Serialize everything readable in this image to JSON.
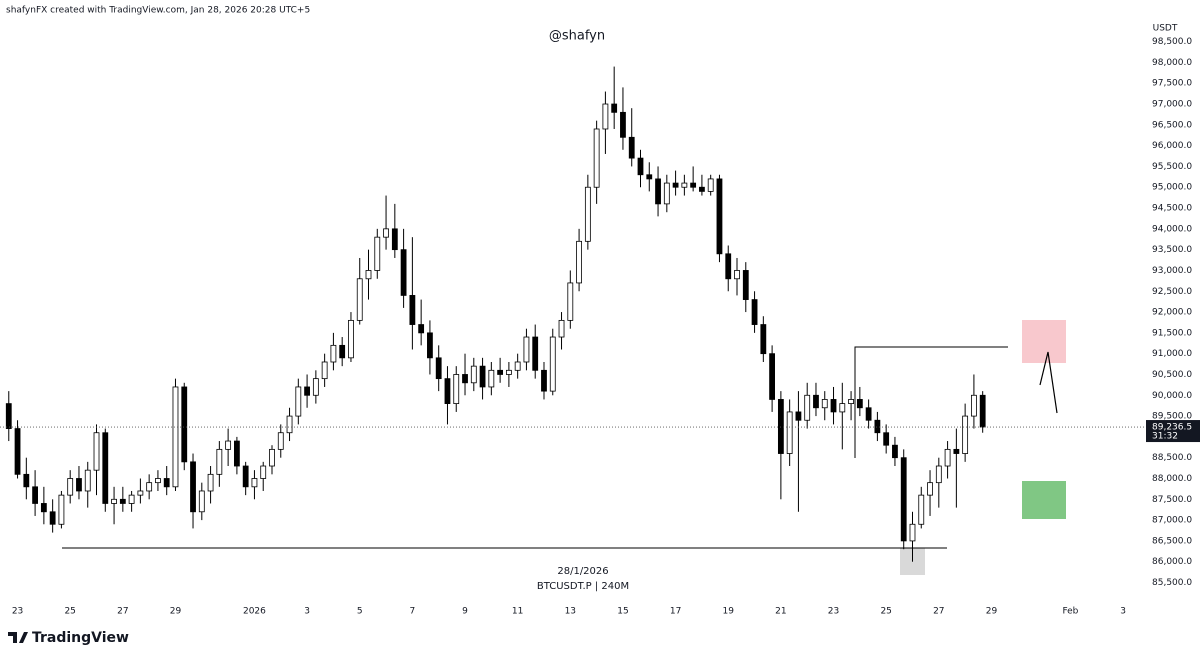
{
  "header": "shafynFX created with TradingView.com, Jan 28, 2026 20:28 UTC+5",
  "logo": "TradingView",
  "chart_data": {
    "type": "candlestick",
    "title": "@shafyn",
    "date_label": "28/1/2026",
    "symbol": "BTCUSDT.P | 240M",
    "y_unit": "USDT",
    "up_color": "#ffffff",
    "down_color": "#000000",
    "outline_color": "#000000",
    "price_label": {
      "value": 89236.5,
      "label": "89,236.5"
    },
    "countdown": "31:32",
    "xlim": [
      -1,
      129.5
    ],
    "xticks": [
      {
        "value": 1,
        "label": "23"
      },
      {
        "value": 7,
        "label": "25"
      },
      {
        "value": 13,
        "label": "27"
      },
      {
        "value": 19,
        "label": "29"
      },
      {
        "value": 28,
        "label": "2026"
      },
      {
        "value": 34,
        "label": "3"
      },
      {
        "value": 40,
        "label": "5"
      },
      {
        "value": 46,
        "label": "7"
      },
      {
        "value": 52,
        "label": "9"
      },
      {
        "value": 58,
        "label": "11"
      },
      {
        "value": 64,
        "label": "13"
      },
      {
        "value": 70,
        "label": "15"
      },
      {
        "value": 76,
        "label": "17"
      },
      {
        "value": 82,
        "label": "19"
      },
      {
        "value": 88,
        "label": "21"
      },
      {
        "value": 94,
        "label": "23"
      },
      {
        "value": 100,
        "label": "25"
      },
      {
        "value": 106,
        "label": "27"
      },
      {
        "value": 112,
        "label": "29"
      },
      {
        "value": 121,
        "label": "Feb"
      },
      {
        "value": 127,
        "label": "3"
      }
    ],
    "ylim": [
      85200,
      99500
    ],
    "yticks": [
      {
        "value": 85500,
        "label": "85,500.0"
      },
      {
        "value": 86000,
        "label": "86,000.0"
      },
      {
        "value": 86500,
        "label": "86,500.0"
      },
      {
        "value": 87000,
        "label": "87,000.0"
      },
      {
        "value": 87500,
        "label": "87,500.0"
      },
      {
        "value": 88000,
        "label": "88,000.0"
      },
      {
        "value": 88500,
        "label": "88,500.0"
      },
      {
        "value": 89000,
        "label": "89,000.0"
      },
      {
        "value": 89500,
        "label": "89,500.0"
      },
      {
        "value": 90000,
        "label": "90,000.0"
      },
      {
        "value": 90500,
        "label": "90,500.0"
      },
      {
        "value": 91000,
        "label": "91,000.0"
      },
      {
        "value": 91500,
        "label": "91,500.0"
      },
      {
        "value": 92000,
        "label": "92,000.0"
      },
      {
        "value": 92500,
        "label": "92,500.0"
      },
      {
        "value": 93000,
        "label": "93,000.0"
      },
      {
        "value": 93500,
        "label": "93,500.0"
      },
      {
        "value": 94000,
        "label": "94,000.0"
      },
      {
        "value": 94500,
        "label": "94,500.0"
      },
      {
        "value": 95000,
        "label": "95,000.0"
      },
      {
        "value": 95500,
        "label": "95,500.0"
      },
      {
        "value": 96000,
        "label": "96,000.0"
      },
      {
        "value": 96500,
        "label": "96,500.0"
      },
      {
        "value": 97000,
        "label": "97,000.0"
      },
      {
        "value": 97500,
        "label": "97,500.0"
      },
      {
        "value": 98000,
        "label": "98,000.0"
      },
      {
        "value": 98500,
        "label": "98,500.0"
      }
    ],
    "candles": [
      [
        89800,
        90100,
        88900,
        89200
      ],
      [
        89200,
        89400,
        88000,
        88100
      ],
      [
        88100,
        88500,
        87500,
        87800
      ],
      [
        87800,
        88200,
        87100,
        87400
      ],
      [
        87400,
        87800,
        86900,
        87200
      ],
      [
        87200,
        87500,
        86700,
        86900
      ],
      [
        86900,
        87700,
        86800,
        87600
      ],
      [
        87600,
        88200,
        87400,
        88000
      ],
      [
        88000,
        88300,
        87500,
        87700
      ],
      [
        87700,
        88400,
        87300,
        88200
      ],
      [
        88200,
        89300,
        87600,
        89100
      ],
      [
        89100,
        89200,
        87200,
        87400
      ],
      [
        87400,
        87800,
        86900,
        87500
      ],
      [
        87500,
        87800,
        87200,
        87400
      ],
      [
        87400,
        87700,
        87200,
        87600
      ],
      [
        87600,
        88000,
        87400,
        87700
      ],
      [
        87700,
        88100,
        87500,
        87900
      ],
      [
        87900,
        88200,
        87700,
        88000
      ],
      [
        88000,
        88300,
        87600,
        87800
      ],
      [
        87800,
        90400,
        87700,
        90200
      ],
      [
        90200,
        90300,
        88200,
        88400
      ],
      [
        88400,
        88600,
        86800,
        87200
      ],
      [
        87200,
        87900,
        87000,
        87700
      ],
      [
        87700,
        88300,
        87400,
        88100
      ],
      [
        88100,
        88900,
        87800,
        88700
      ],
      [
        88700,
        89200,
        88300,
        88900
      ],
      [
        88900,
        89000,
        88100,
        88300
      ],
      [
        88300,
        88400,
        87600,
        87800
      ],
      [
        87800,
        88200,
        87500,
        88000
      ],
      [
        88000,
        88400,
        87700,
        88300
      ],
      [
        88300,
        88800,
        88100,
        88700
      ],
      [
        88700,
        89300,
        88500,
        89100
      ],
      [
        89100,
        89700,
        88900,
        89500
      ],
      [
        89500,
        90400,
        89300,
        90200
      ],
      [
        90200,
        90500,
        89700,
        90000
      ],
      [
        90000,
        90600,
        89800,
        90400
      ],
      [
        90400,
        91000,
        90200,
        90800
      ],
      [
        90800,
        91500,
        90600,
        91200
      ],
      [
        91200,
        91400,
        90700,
        90900
      ],
      [
        90900,
        92000,
        90800,
        91800
      ],
      [
        91800,
        93300,
        91700,
        92800
      ],
      [
        92800,
        93500,
        92300,
        93000
      ],
      [
        93000,
        94000,
        92800,
        93800
      ],
      [
        93800,
        94800,
        93500,
        94000
      ],
      [
        94000,
        94600,
        93300,
        93500
      ],
      [
        93500,
        94000,
        92100,
        92400
      ],
      [
        92400,
        93800,
        91100,
        91700
      ],
      [
        91700,
        92300,
        91200,
        91500
      ],
      [
        91500,
        91800,
        90500,
        90900
      ],
      [
        90900,
        91200,
        90100,
        90400
      ],
      [
        90400,
        90700,
        89300,
        89800
      ],
      [
        89800,
        90700,
        89600,
        90500
      ],
      [
        90500,
        91000,
        90000,
        90300
      ],
      [
        90300,
        90900,
        90100,
        90700
      ],
      [
        90700,
        90900,
        89900,
        90200
      ],
      [
        90200,
        90800,
        90000,
        90600
      ],
      [
        90600,
        90900,
        90300,
        90500
      ],
      [
        90500,
        90800,
        90200,
        90600
      ],
      [
        90600,
        91000,
        90400,
        90800
      ],
      [
        90800,
        91600,
        90600,
        91400
      ],
      [
        91400,
        91700,
        90400,
        90600
      ],
      [
        90600,
        90800,
        89900,
        90100
      ],
      [
        90100,
        91600,
        90000,
        91400
      ],
      [
        91400,
        92000,
        91100,
        91800
      ],
      [
        91800,
        93000,
        91600,
        92700
      ],
      [
        92700,
        94000,
        92500,
        93700
      ],
      [
        93700,
        95300,
        93500,
        95000
      ],
      [
        95000,
        96600,
        94600,
        96400
      ],
      [
        96400,
        97300,
        95800,
        97000
      ],
      [
        97000,
        97900,
        96400,
        96800
      ],
      [
        96800,
        97400,
        95900,
        96200
      ],
      [
        96200,
        96900,
        95500,
        95700
      ],
      [
        95700,
        95900,
        95000,
        95300
      ],
      [
        95300,
        95600,
        94900,
        95200
      ],
      [
        95200,
        95500,
        94300,
        94600
      ],
      [
        94600,
        95300,
        94400,
        95100
      ],
      [
        95100,
        95400,
        94800,
        95000
      ],
      [
        95000,
        95300,
        94800,
        95100
      ],
      [
        95100,
        95500,
        94900,
        95000
      ],
      [
        95000,
        95300,
        94800,
        94900
      ],
      [
        94900,
        95300,
        94800,
        95200
      ],
      [
        95200,
        95300,
        93200,
        93400
      ],
      [
        93400,
        93600,
        92500,
        92800
      ],
      [
        92800,
        93300,
        92400,
        93000
      ],
      [
        93000,
        93200,
        92000,
        92300
      ],
      [
        92300,
        92500,
        91500,
        91700
      ],
      [
        91700,
        91900,
        90800,
        91000
      ],
      [
        91000,
        91200,
        89600,
        89900
      ],
      [
        89900,
        90100,
        87500,
        88600
      ],
      [
        88600,
        89900,
        88300,
        89600
      ],
      [
        89600,
        90100,
        87200,
        89400
      ],
      [
        89400,
        90300,
        89200,
        90000
      ],
      [
        90000,
        90300,
        89500,
        89700
      ],
      [
        89700,
        90100,
        89400,
        89900
      ],
      [
        89900,
        90200,
        89300,
        89600
      ],
      [
        89600,
        90300,
        88700,
        89800
      ],
      [
        89800,
        90100,
        89400,
        89900
      ],
      [
        89900,
        90200,
        89500,
        89700
      ],
      [
        89700,
        89900,
        89200,
        89400
      ],
      [
        89400,
        89600,
        88900,
        89100
      ],
      [
        89100,
        89300,
        88600,
        88800
      ],
      [
        88800,
        89000,
        88300,
        88500
      ],
      [
        88500,
        88700,
        86300,
        86500
      ],
      [
        86500,
        87200,
        86000,
        86900
      ],
      [
        86900,
        87800,
        86800,
        87600
      ],
      [
        87600,
        88200,
        87100,
        87900
      ],
      [
        87900,
        88500,
        87300,
        88300
      ],
      [
        88300,
        88900,
        88000,
        88700
      ],
      [
        88700,
        89200,
        87300,
        88600
      ],
      [
        88600,
        89800,
        88400,
        89500
      ],
      [
        89500,
        90500,
        89200,
        90000
      ],
      [
        90000,
        90100,
        89100,
        89236.5
      ]
    ]
  }
}
